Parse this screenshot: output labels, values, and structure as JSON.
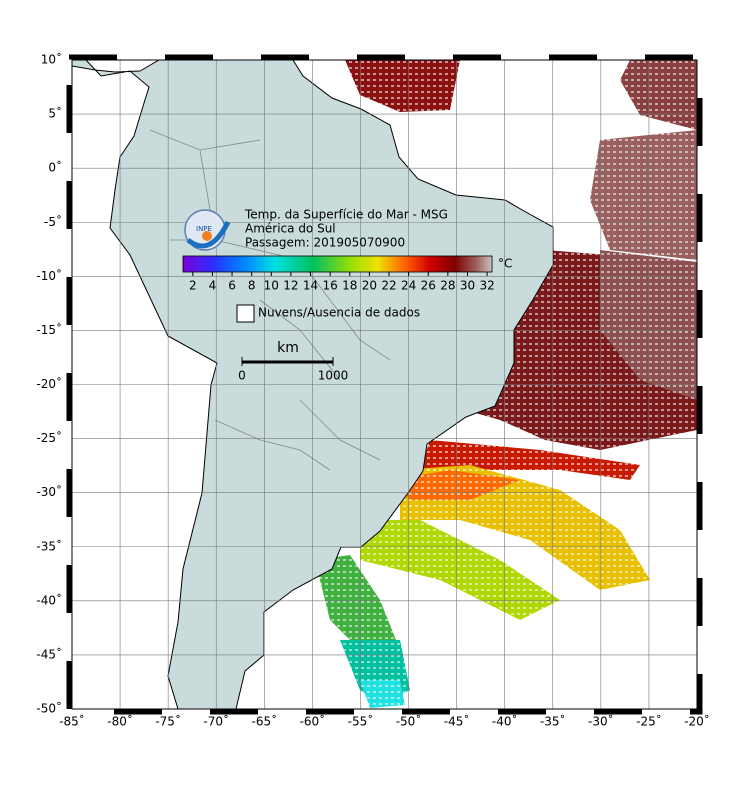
{
  "map": {
    "title_lines": [
      "Temp. da Superfície do Mar - MSG",
      "América do Sul",
      "Passagem: 201905070900"
    ],
    "logo_text": "INPE",
    "xlim": [
      -85,
      -20
    ],
    "ylim": [
      -50,
      10
    ],
    "xticks": [
      {
        "value": -85,
        "label": "-85˚"
      },
      {
        "value": -80,
        "label": "-80˚"
      },
      {
        "value": -75,
        "label": "-75˚"
      },
      {
        "value": -70,
        "label": "-70˚"
      },
      {
        "value": -65,
        "label": "-65˚"
      },
      {
        "value": -60,
        "label": "-60˚"
      },
      {
        "value": -55,
        "label": "-55˚"
      },
      {
        "value": -50,
        "label": "-50˚"
      },
      {
        "value": -45,
        "label": "-45˚"
      },
      {
        "value": -40,
        "label": "-40˚"
      },
      {
        "value": -35,
        "label": "-35˚"
      },
      {
        "value": -30,
        "label": "-30˚"
      },
      {
        "value": -25,
        "label": "-25˚"
      },
      {
        "value": -20,
        "label": "-20˚"
      }
    ],
    "yticks": [
      {
        "value": 10,
        "label": "10˚"
      },
      {
        "value": 5,
        "label": "5˚"
      },
      {
        "value": 0,
        "label": "0˚"
      },
      {
        "value": -5,
        "label": "-5˚"
      },
      {
        "value": -10,
        "label": "-10˚"
      },
      {
        "value": -15,
        "label": "-15˚"
      },
      {
        "value": -20,
        "label": "-20˚"
      },
      {
        "value": -25,
        "label": "-25˚"
      },
      {
        "value": -30,
        "label": "-30˚"
      },
      {
        "value": -35,
        "label": "-35˚"
      },
      {
        "value": -40,
        "label": "-40˚"
      },
      {
        "value": -45,
        "label": "-45˚"
      },
      {
        "value": -50,
        "label": "-50˚"
      }
    ],
    "grid": true,
    "colorbar": {
      "unit": "°C",
      "clim": [
        1,
        32.5
      ],
      "ticks": [
        2,
        4,
        6,
        8,
        10,
        12,
        14,
        16,
        18,
        20,
        22,
        24,
        26,
        28,
        30,
        32
      ]
    },
    "legend": "Nuvens/Ausencia de dados",
    "scale_bar": {
      "unit": "km",
      "start": "0",
      "end": "1000"
    }
  }
}
